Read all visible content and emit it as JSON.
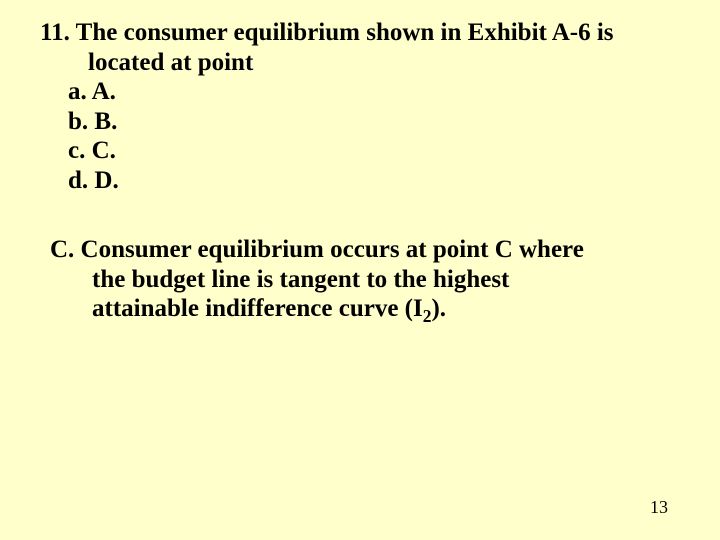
{
  "slide": {
    "background_color": "#ffffcc",
    "text_color": "#000000",
    "font_family": "Times New Roman",
    "question_fontsize": 25,
    "answer_fontsize": 25,
    "pagenum_fontsize": 18
  },
  "question": {
    "number": "11.",
    "text_line1": "11. The consumer equilibrium shown in Exhibit A-6 is",
    "text_line2": "located at point",
    "options": {
      "a": "a. A.",
      "b": "b. B.",
      "c": "c. C.",
      "d": "d. D."
    }
  },
  "answer": {
    "line1": "C. Consumer equilibrium occurs at point C where",
    "line2": "the budget line is tangent to the highest",
    "line3_pre": "attainable indifference curve (I",
    "line3_sub": "2",
    "line3_post": ")."
  },
  "page_number": "13"
}
